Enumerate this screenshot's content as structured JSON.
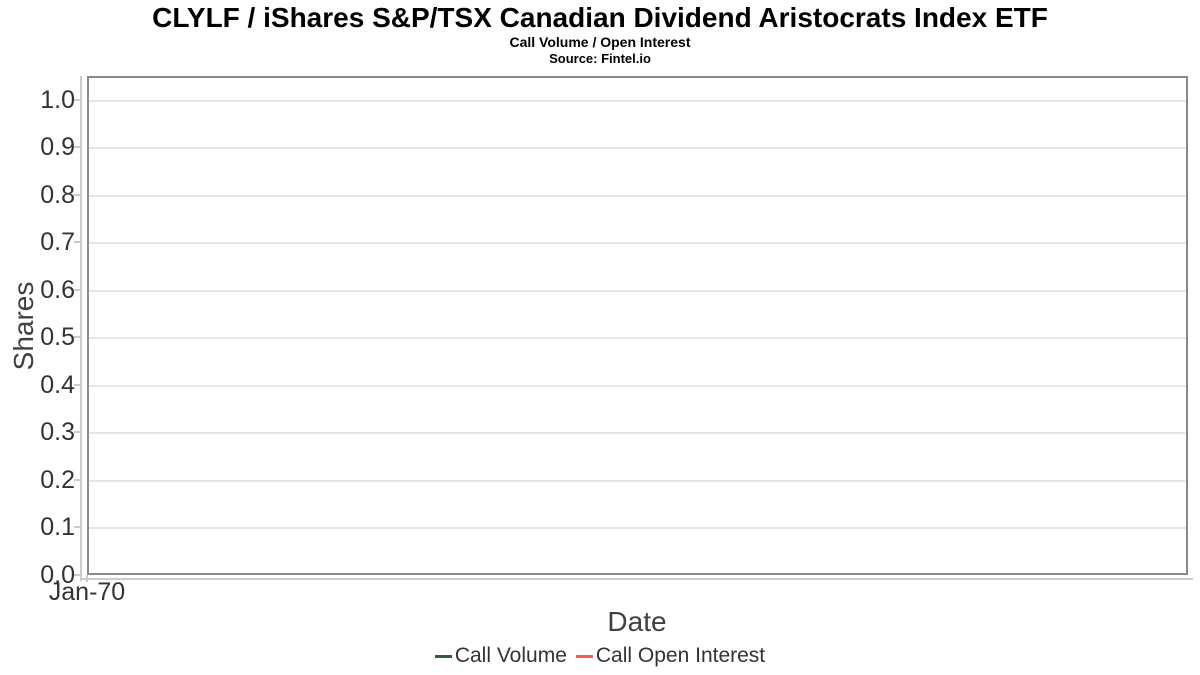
{
  "chart_data": {
    "type": "line",
    "title": "CLYLF / iShares S&P/TSX Canadian Dividend Aristocrats Index ETF",
    "subtitle": "Call Volume / Open Interest",
    "source": "Source: Fintel.io",
    "xlabel": "Date",
    "ylabel": "Shares",
    "ylim": [
      0,
      1.05
    ],
    "y_ticks": [
      "0.0",
      "0.1",
      "0.2",
      "0.3",
      "0.4",
      "0.5",
      "0.6",
      "0.7",
      "0.8",
      "0.9",
      "1.0"
    ],
    "x_ticks": [
      "Jan-70"
    ],
    "grid": true,
    "legend_position": "bottom",
    "series": [
      {
        "name": "Call Volume",
        "color": "#2d5f3c",
        "values": []
      },
      {
        "name": "Call Open Interest",
        "color": "#f45b55",
        "values": []
      }
    ]
  },
  "colors": {
    "background": "#ffffff",
    "grid": "#e6e6e6",
    "plot_border": "#8a8a8a",
    "axis_line": "#cccccc",
    "title_text": "#000000",
    "tick_label_text": "#333333",
    "axis_title_text": "#404040",
    "legend_text": "#333333"
  }
}
